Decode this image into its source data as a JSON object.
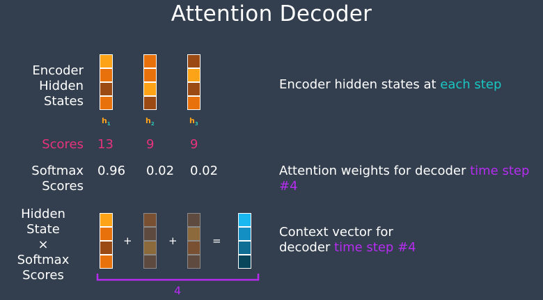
{
  "title": "Attention Decoder",
  "colors": {
    "background": "#333f4f",
    "accent_pink": "#e7327c",
    "accent_teal": "#19c7c2",
    "accent_purple": "#b52cf0"
  },
  "rows": {
    "encoder_label": [
      "Encoder",
      "Hidden",
      "States"
    ],
    "scores_label": "Scores",
    "softmax_label": [
      "Softmax",
      "Scores"
    ],
    "product_label": [
      "Hidden State",
      "×",
      "Softmax",
      "Scores"
    ]
  },
  "hidden_states": [
    {
      "name": "h",
      "sub": "1",
      "cells": [
        "#fca317",
        "#e8710c",
        "#9c4a13",
        "#e8710c"
      ]
    },
    {
      "name": "h",
      "sub": "2",
      "cells": [
        "#e8710c",
        "#e8710c",
        "#fca317",
        "#9c4a13"
      ]
    },
    {
      "name": "h",
      "sub": "3",
      "cells": [
        "#9c4a13",
        "#fca317",
        "#9c4a13",
        "#e8710c"
      ]
    }
  ],
  "scores": [
    "13",
    "9",
    "9"
  ],
  "softmax": [
    "0.96",
    "0.02",
    "0.02"
  ],
  "weighted_vectors": [
    [
      "#fca317",
      "#e8710c",
      "#9c4a13",
      "#e8710c"
    ],
    [
      "#7a5032",
      "#5e4a3e",
      "#8c6a3c",
      "#5e4a3e"
    ],
    [
      "#5e4a3e",
      "#8c6a3c",
      "#7a5032",
      "#5e4a3e"
    ]
  ],
  "context_vector": [
    "#1ab8f0",
    "#138fc4",
    "#0e6e93",
    "#08465c"
  ],
  "operators": {
    "plus": "+",
    "equals": "="
  },
  "bracket_label": "4",
  "descriptions": {
    "encoder_prefix": "Encoder hidden states at ",
    "encoder_highlight": "each step",
    "attention_prefix": "Attention weights for decoder ",
    "attention_highlight": "time step #4",
    "context_line1": "Context vector for",
    "context_prefix": "decoder ",
    "context_highlight": "time step #4"
  }
}
